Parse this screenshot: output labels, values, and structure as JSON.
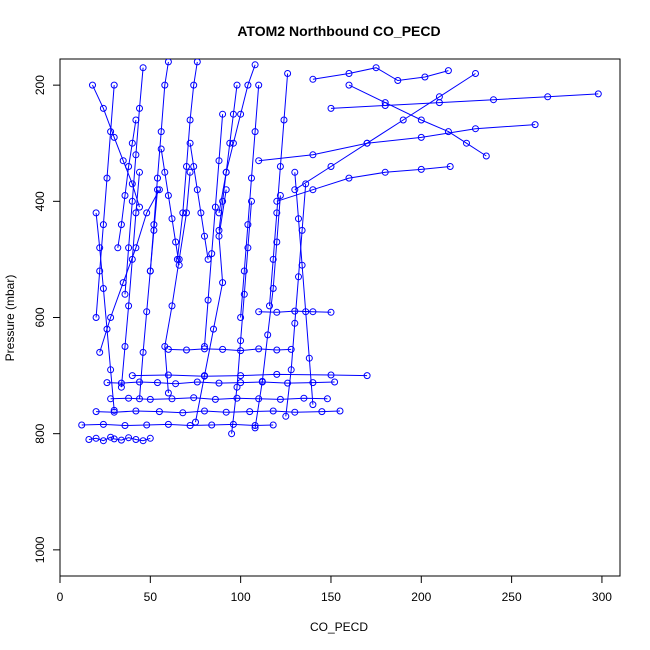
{
  "chart_data": {
    "type": "line",
    "title": "ATOM2 Northbound CO_PECD",
    "xlabel": "CO_PECD",
    "ylabel": "Pressure (mbar)",
    "xlim": [
      0,
      310
    ],
    "ylim": [
      1045,
      155
    ],
    "y_reversed": true,
    "grid": false,
    "marker": "open-circle",
    "color": "#0000ff",
    "x_ticks": [
      0,
      50,
      100,
      150,
      200,
      250,
      300
    ],
    "y_ticks": [
      200,
      400,
      600,
      800,
      1000
    ],
    "series": [
      {
        "x": [
          16,
          20,
          24,
          28,
          30,
          34,
          38,
          42,
          46,
          50
        ],
        "y": [
          810,
          808,
          812,
          806,
          809,
          811,
          807,
          810,
          812,
          808
        ]
      },
      {
        "x": [
          12,
          24,
          36,
          48,
          60,
          72,
          84,
          96,
          108,
          118
        ],
        "y": [
          785,
          784,
          786,
          785,
          784,
          786,
          785,
          784,
          786,
          785
        ]
      },
      {
        "x": [
          20,
          30,
          42,
          55,
          68,
          80,
          92,
          105,
          118,
          130,
          145,
          155
        ],
        "y": [
          762,
          763,
          761,
          762,
          764,
          761,
          763,
          762,
          761,
          763,
          762,
          761
        ]
      },
      {
        "x": [
          28,
          38,
          50,
          62,
          74,
          86,
          98,
          110,
          122,
          135,
          148
        ],
        "y": [
          740,
          739,
          741,
          740,
          738,
          741,
          739,
          740,
          741,
          739,
          740
        ]
      },
      {
        "x": [
          26,
          34,
          44,
          54,
          64,
          76,
          88,
          100,
          112,
          126,
          140,
          152
        ],
        "y": [
          712,
          713,
          711,
          712,
          714,
          711,
          713,
          712,
          711,
          713,
          712,
          711
        ]
      },
      {
        "x": [
          60,
          70,
          80,
          90,
          100,
          110,
          120,
          128
        ],
        "y": [
          655,
          656,
          654,
          655,
          657,
          654,
          656,
          655
        ]
      },
      {
        "x": [
          110,
          120,
          130,
          140,
          150
        ],
        "y": [
          590,
          591,
          589,
          590,
          591
        ]
      },
      {
        "x": [
          40,
          60,
          80,
          100,
          120,
          150,
          170
        ],
        "y": [
          700,
          699,
          701,
          700,
          698,
          699,
          700
        ]
      },
      {
        "x": [
          22,
          28,
          35,
          42,
          48,
          55
        ],
        "y": [
          660,
          600,
          540,
          480,
          420,
          380
        ]
      },
      {
        "x": [
          34,
          36,
          38,
          40,
          42,
          44
        ],
        "y": [
          720,
          650,
          580,
          500,
          420,
          350
        ]
      },
      {
        "x": [
          44,
          46,
          48,
          50,
          52,
          54
        ],
        "y": [
          740,
          660,
          590,
          520,
          450,
          380
        ]
      },
      {
        "x": [
          30,
          28,
          26,
          24,
          22,
          20
        ],
        "y": [
          760,
          690,
          620,
          550,
          480,
          420
        ]
      },
      {
        "x": [
          60,
          58,
          62,
          66,
          70,
          72
        ],
        "y": [
          730,
          650,
          580,
          500,
          420,
          350
        ]
      },
      {
        "x": [
          75,
          80,
          85,
          90,
          88,
          92
        ],
        "y": [
          780,
          700,
          620,
          540,
          460,
          380
        ]
      },
      {
        "x": [
          95,
          98,
          100,
          102,
          104,
          106
        ],
        "y": [
          800,
          720,
          640,
          560,
          480,
          400
        ]
      },
      {
        "x": [
          108,
          112,
          115,
          118,
          120,
          122
        ],
        "y": [
          790,
          710,
          630,
          550,
          470,
          390
        ]
      },
      {
        "x": [
          125,
          128,
          130,
          132,
          134,
          136
        ],
        "y": [
          770,
          690,
          610,
          530,
          450,
          370
        ]
      },
      {
        "x": [
          140,
          138,
          136,
          134,
          132,
          130
        ],
        "y": [
          750,
          670,
          590,
          510,
          430,
          350
        ]
      },
      {
        "x": [
          80,
          82,
          84,
          86,
          88,
          90
        ],
        "y": [
          650,
          570,
          490,
          410,
          330,
          250
        ]
      },
      {
        "x": [
          100,
          102,
          104,
          106,
          108,
          110
        ],
        "y": [
          600,
          520,
          440,
          360,
          280,
          200
        ]
      },
      {
        "x": [
          116,
          118,
          120,
          122,
          124,
          126
        ],
        "y": [
          580,
          500,
          420,
          340,
          260,
          180
        ]
      },
      {
        "x": [
          36,
          38,
          40,
          42,
          44,
          46
        ],
        "y": [
          560,
          480,
          400,
          320,
          240,
          170
        ]
      },
      {
        "x": [
          20,
          22,
          24,
          26,
          28,
          30
        ],
        "y": [
          600,
          520,
          440,
          360,
          280,
          200
        ]
      },
      {
        "x": [
          50,
          52,
          54,
          56,
          58,
          60
        ],
        "y": [
          520,
          440,
          360,
          280,
          200,
          160
        ]
      },
      {
        "x": [
          65,
          68,
          70,
          72,
          74,
          76
        ],
        "y": [
          500,
          420,
          340,
          260,
          200,
          160
        ]
      },
      {
        "x": [
          88,
          92,
          96,
          100,
          104,
          108
        ],
        "y": [
          420,
          350,
          300,
          250,
          200,
          165
        ]
      },
      {
        "x": [
          130,
          150,
          170,
          190,
          210,
          230
        ],
        "y": [
          380,
          340,
          300,
          260,
          220,
          180
        ]
      },
      {
        "x": [
          120,
          140,
          160,
          180,
          200,
          216
        ],
        "y": [
          400,
          380,
          360,
          350,
          345,
          340
        ]
      },
      {
        "x": [
          110,
          140,
          170,
          200,
          230,
          263
        ],
        "y": [
          330,
          320,
          300,
          290,
          275,
          268
        ]
      },
      {
        "x": [
          150,
          180,
          210,
          240,
          270,
          298
        ],
        "y": [
          240,
          235,
          230,
          225,
          220,
          215
        ]
      },
      {
        "x": [
          160,
          180,
          200,
          215,
          225,
          236
        ],
        "y": [
          200,
          230,
          260,
          280,
          300,
          322
        ]
      },
      {
        "x": [
          140,
          160,
          175,
          187,
          202,
          215
        ],
        "y": [
          190,
          180,
          170,
          192,
          186,
          175
        ]
      },
      {
        "x": [
          18,
          24,
          30,
          35,
          40,
          44
        ],
        "y": [
          200,
          240,
          290,
          330,
          370,
          410
        ]
      },
      {
        "x": [
          42,
          40,
          38,
          36,
          34,
          32
        ],
        "y": [
          260,
          300,
          340,
          390,
          440,
          480
        ]
      },
      {
        "x": [
          98,
          96,
          94,
          92,
          90,
          88
        ],
        "y": [
          200,
          250,
          300,
          350,
          400,
          450
        ]
      },
      {
        "x": [
          72,
          74,
          76,
          78,
          80,
          82
        ],
        "y": [
          300,
          340,
          380,
          420,
          460,
          500
        ]
      },
      {
        "x": [
          56,
          58,
          60,
          62,
          64,
          66
        ],
        "y": [
          310,
          350,
          390,
          430,
          470,
          510
        ]
      }
    ]
  }
}
